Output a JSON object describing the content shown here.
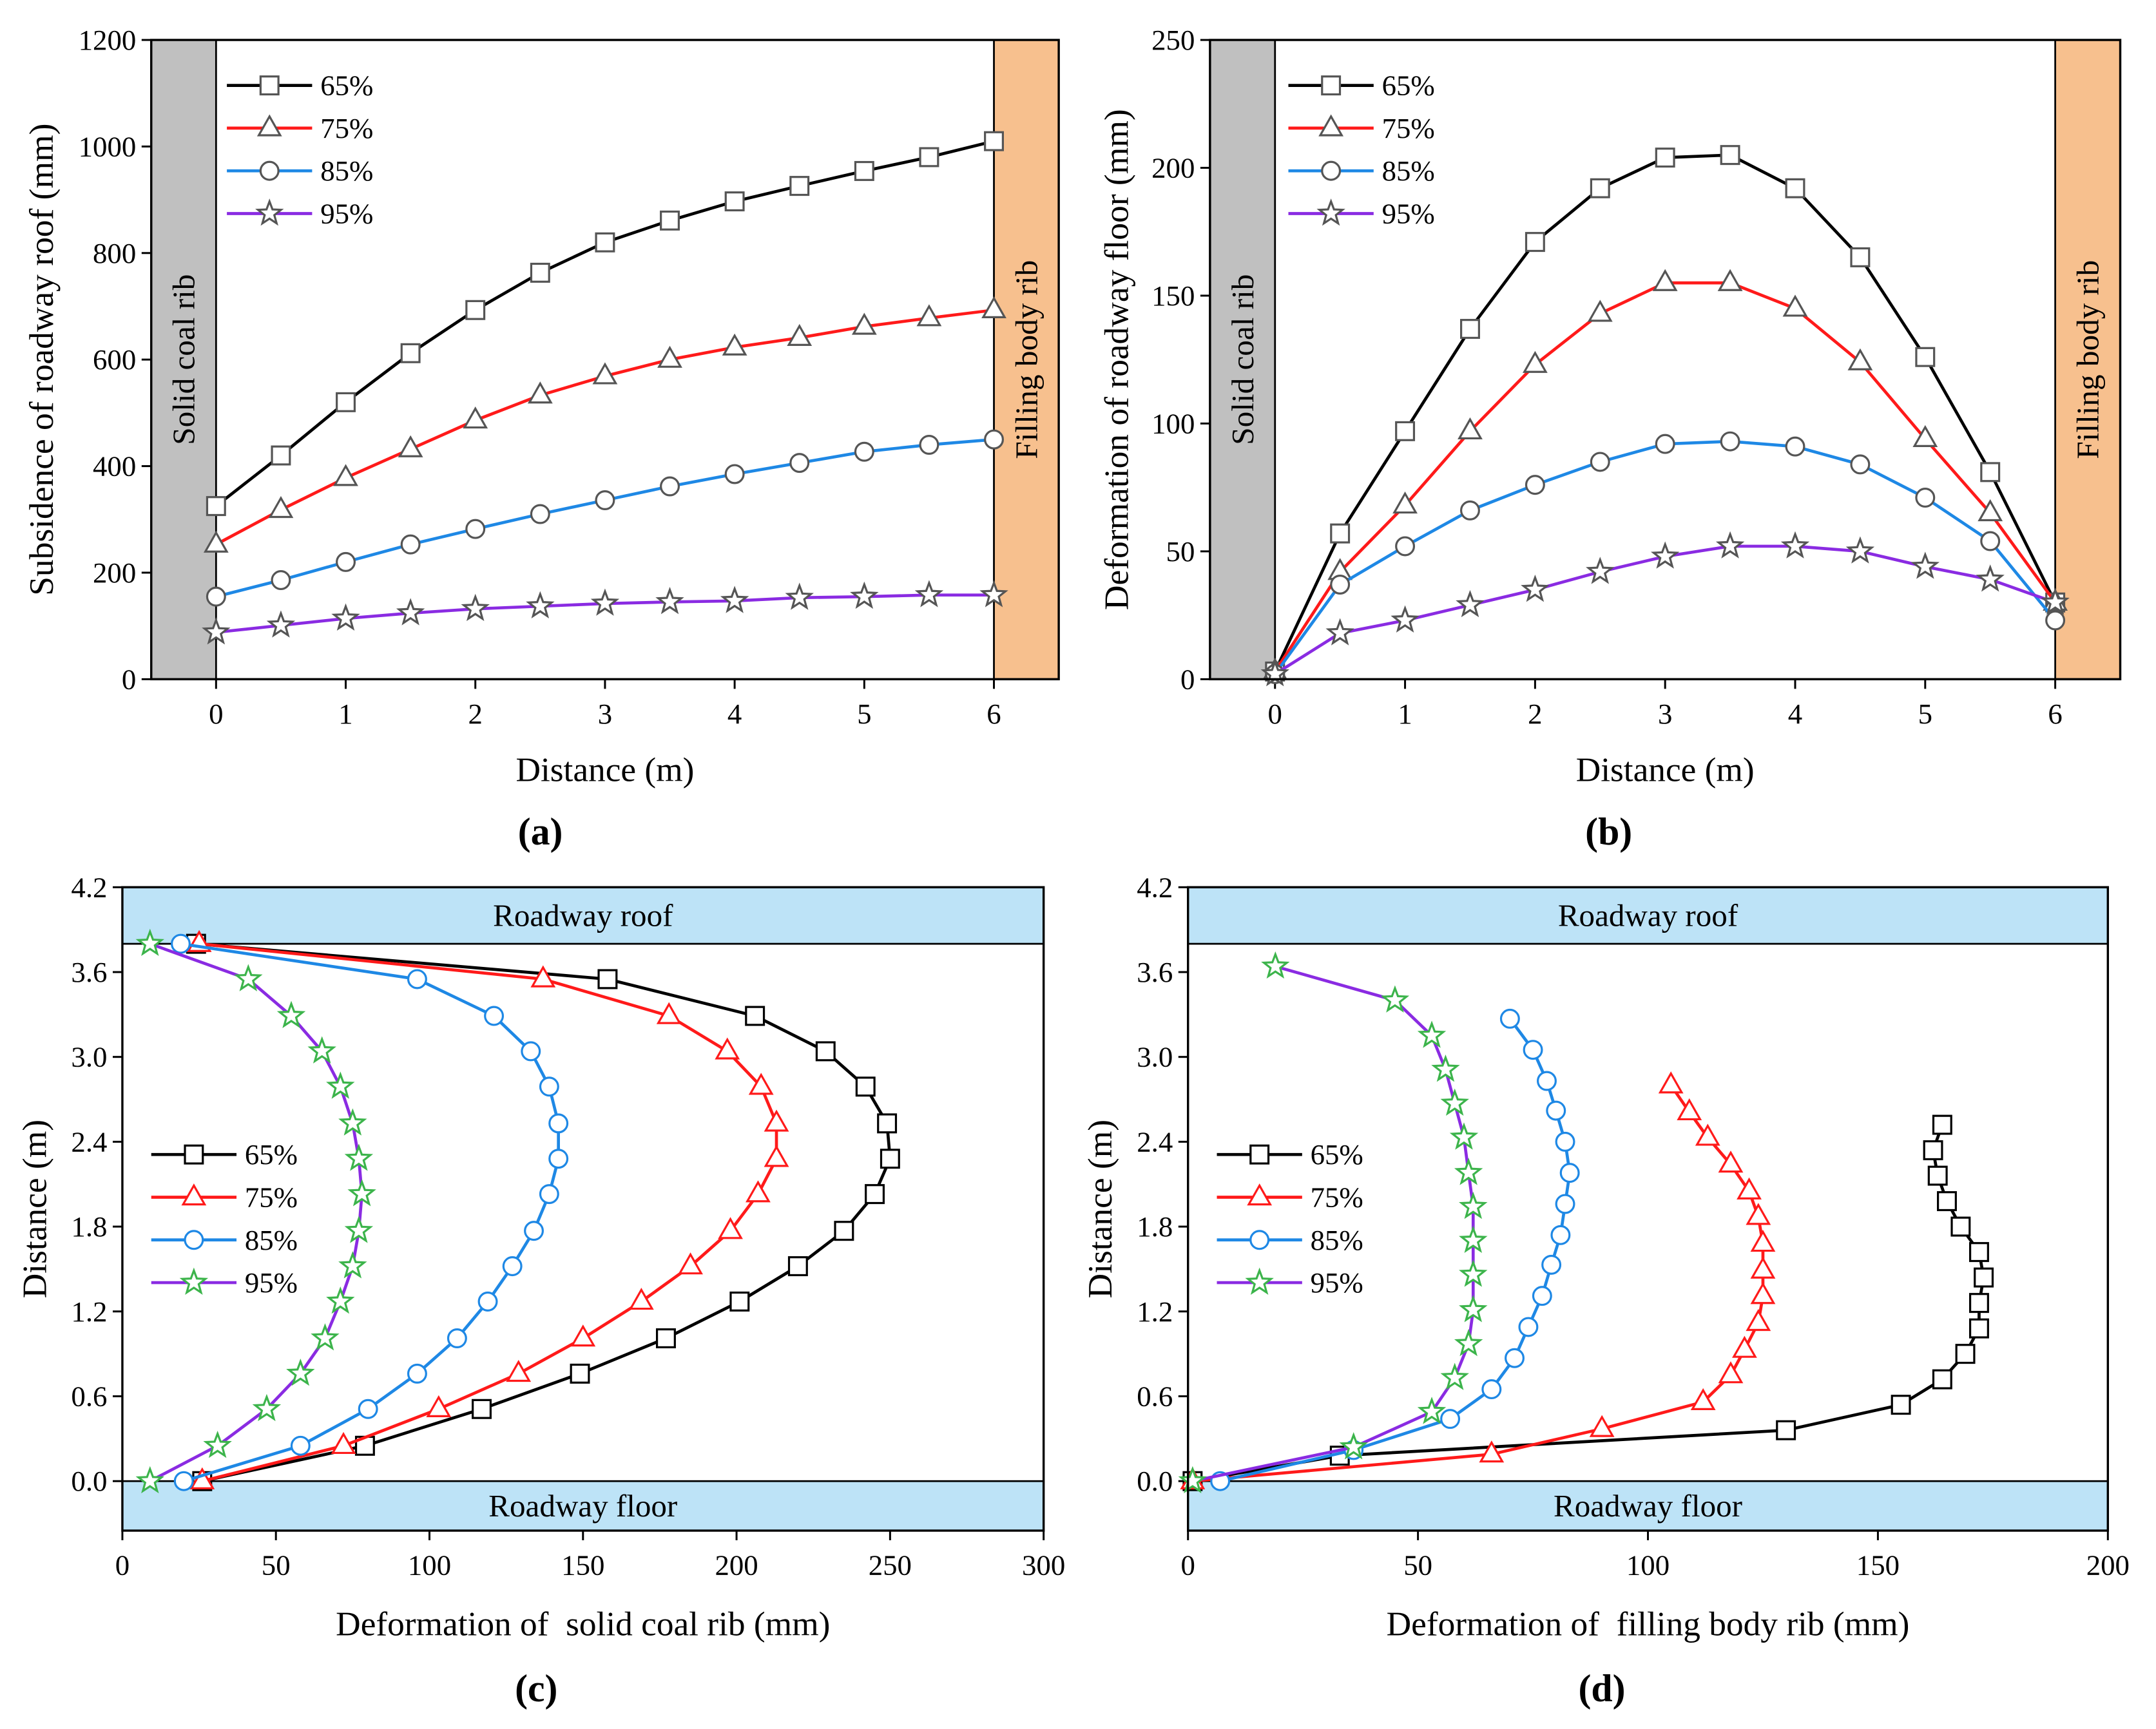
{
  "chart_data": [
    {
      "panel_label": "(a)",
      "type": "line",
      "xlabel": "Distance (m)",
      "ylabel": "Subsidence of roadway roof (mm)",
      "xlim": [
        -0.5,
        6.5
      ],
      "ylim": [
        0,
        1200
      ],
      "xticks": [
        0,
        1,
        2,
        3,
        4,
        5,
        6
      ],
      "xtick_labels": [
        "0",
        "1",
        "2",
        "3",
        "4",
        "5",
        "6"
      ],
      "yticks": [
        0,
        200,
        400,
        600,
        800,
        1000,
        1200
      ],
      "ytick_labels": [
        "0",
        "200",
        "400",
        "600",
        "800",
        "1000",
        "1200"
      ],
      "grid": false,
      "legend_position": "top-left",
      "regions": [
        {
          "label": "Solid coal rib",
          "axis": "x",
          "from": -0.5,
          "to": 0,
          "color": "#c0c0c0"
        },
        {
          "label": "Filling body rib",
          "axis": "x",
          "from": 6,
          "to": 6.5,
          "color": "#f7c08e"
        }
      ],
      "x": [
        0,
        0.5,
        1,
        1.5,
        2,
        2.5,
        3,
        3.5,
        4,
        4.5,
        5,
        5.5,
        6
      ],
      "series": [
        {
          "name": "65%",
          "marker": "square",
          "color": "#000000",
          "marker_color": "#555555",
          "values": [
            325,
            420,
            520,
            612,
            693,
            763,
            820,
            861,
            897,
            926,
            954,
            980,
            1010
          ]
        },
        {
          "name": "75%",
          "marker": "triangle",
          "color": "#ff1a1a",
          "marker_color": "#555555",
          "values": [
            253,
            318,
            378,
            432,
            486,
            533,
            569,
            600,
            623,
            641,
            662,
            678,
            693
          ]
        },
        {
          "name": "85%",
          "marker": "circle",
          "color": "#1e88e5",
          "marker_color": "#555555",
          "values": [
            155,
            186,
            220,
            253,
            282,
            310,
            336,
            362,
            385,
            406,
            427,
            440,
            450
          ]
        },
        {
          "name": "95%",
          "marker": "star",
          "color": "#8a2be2",
          "marker_color": "#555555",
          "values": [
            88,
            101,
            114,
            124,
            132,
            137,
            142,
            145,
            147,
            153,
            155,
            158,
            158
          ]
        }
      ]
    },
    {
      "panel_label": "(b)",
      "type": "line",
      "xlabel": "Distance (m)",
      "ylabel": "Deformation of roadway floor (mm)",
      "xlim": [
        -0.5,
        6.5
      ],
      "ylim": [
        0,
        250
      ],
      "xticks": [
        0,
        1,
        2,
        3,
        4,
        5,
        6
      ],
      "xtick_labels": [
        "0",
        "1",
        "2",
        "3",
        "4",
        "5",
        "6"
      ],
      "yticks": [
        0,
        50,
        100,
        150,
        200,
        250
      ],
      "ytick_labels": [
        "0",
        "50",
        "100",
        "150",
        "200",
        "250"
      ],
      "grid": false,
      "legend_position": "top-left",
      "regions": [
        {
          "label": "Solid coal rib",
          "axis": "x",
          "from": -0.5,
          "to": 0,
          "color": "#c0c0c0"
        },
        {
          "label": "Filling body rib",
          "axis": "x",
          "from": 6,
          "to": 6.5,
          "color": "#f7c08e"
        }
      ],
      "x": [
        0,
        0.5,
        1,
        1.5,
        2,
        2.5,
        3,
        3.5,
        4,
        4.5,
        5,
        5.5,
        6
      ],
      "series": [
        {
          "name": "65%",
          "marker": "square",
          "color": "#000000",
          "marker_color": "#555555",
          "values": [
            3,
            57,
            97,
            137,
            171,
            192,
            204,
            205,
            192,
            165,
            126,
            81,
            30
          ]
        },
        {
          "name": "75%",
          "marker": "triangle",
          "color": "#ff1a1a",
          "marker_color": "#555555",
          "values": [
            3,
            42,
            68,
            97,
            123,
            143,
            155,
            155,
            145,
            124,
            94,
            65,
            30
          ]
        },
        {
          "name": "85%",
          "marker": "circle",
          "color": "#1e88e5",
          "marker_color": "#555555",
          "values": [
            2,
            37,
            52,
            66,
            76,
            85,
            92,
            93,
            91,
            84,
            71,
            54,
            23
          ]
        },
        {
          "name": "95%",
          "marker": "star",
          "color": "#8a2be2",
          "marker_color": "#555555",
          "values": [
            2,
            18,
            23,
            29,
            35,
            42,
            48,
            52,
            52,
            50,
            44,
            39,
            30
          ]
        }
      ]
    },
    {
      "panel_label": "(c)",
      "type": "line",
      "xlabel": "Deformation of  solid coal rib (mm)",
      "ylabel": "Distance (m)",
      "xlim": [
        0,
        300
      ],
      "ylim": [
        -0.35,
        4.2
      ],
      "xticks": [
        0,
        50,
        100,
        150,
        200,
        250,
        300
      ],
      "xtick_labels": [
        "0",
        "50",
        "100",
        "150",
        "200",
        "250",
        "300"
      ],
      "yticks": [
        0,
        0.6,
        1.2,
        1.8,
        2.4,
        3.0,
        3.6,
        4.2
      ],
      "ytick_labels": [
        "0.0",
        "0.6",
        "1.2",
        "1.8",
        "2.4",
        "3.0",
        "3.6",
        "4.2"
      ],
      "grid": false,
      "legend_position": "middle-left",
      "regions": [
        {
          "label": "Roadway roof",
          "axis": "y",
          "from": 3.8,
          "to": 4.2,
          "color": "#bde3f7"
        },
        {
          "label": "Roadway floor",
          "axis": "y",
          "from": -0.35,
          "to": 0,
          "color": "#bde3f7"
        }
      ],
      "series": [
        {
          "name": "65%",
          "marker": "square",
          "color": "#000000",
          "marker_color": "#000000",
          "y": [
            0,
            0.25,
            0.51,
            0.76,
            1.01,
            1.27,
            1.52,
            1.77,
            2.03,
            2.28,
            2.53,
            2.79,
            3.04,
            3.29,
            3.55,
            3.8
          ],
          "x": [
            26,
            79,
            117,
            149,
            177,
            201,
            220,
            235,
            245,
            250,
            249,
            242,
            229,
            206,
            158,
            24
          ]
        },
        {
          "name": "75%",
          "marker": "triangle",
          "color": "#ff1a1a",
          "marker_color": "#ff1a1a",
          "y": [
            0,
            0.25,
            0.51,
            0.76,
            1.01,
            1.27,
            1.52,
            1.77,
            2.03,
            2.28,
            2.53,
            2.79,
            3.04,
            3.29,
            3.55,
            3.8
          ],
          "x": [
            26,
            72,
            103,
            129,
            150,
            169,
            185,
            198,
            207,
            213,
            213,
            208,
            197,
            178,
            137,
            25
          ]
        },
        {
          "name": "85%",
          "marker": "circle",
          "color": "#1e88e5",
          "marker_color": "#1e88e5",
          "y": [
            0,
            0.25,
            0.51,
            0.76,
            1.01,
            1.27,
            1.52,
            1.77,
            2.03,
            2.28,
            2.53,
            2.79,
            3.04,
            3.29,
            3.55,
            3.8
          ],
          "x": [
            20,
            58,
            80,
            96,
            109,
            119,
            127,
            134,
            139,
            142,
            142,
            139,
            133,
            121,
            96,
            19
          ]
        },
        {
          "name": "95%",
          "marker": "star",
          "color": "#8a2be2",
          "marker_color": "#3cb44b",
          "y": [
            0,
            0.25,
            0.51,
            0.76,
            1.01,
            1.27,
            1.52,
            1.77,
            2.03,
            2.28,
            2.53,
            2.79,
            3.04,
            3.29,
            3.55,
            3.8
          ],
          "x": [
            9,
            31,
            47,
            58,
            66,
            71,
            75,
            77,
            78,
            77,
            75,
            71,
            65,
            55,
            41,
            9
          ]
        }
      ]
    },
    {
      "panel_label": "(d)",
      "type": "line",
      "xlabel": "Deformation of  filling body rib (mm)",
      "ylabel": "Distance (m)",
      "xlim": [
        0,
        200
      ],
      "ylim": [
        -0.35,
        4.2
      ],
      "xticks": [
        0,
        50,
        100,
        150,
        200
      ],
      "xtick_labels": [
        "0",
        "50",
        "100",
        "150",
        "200"
      ],
      "yticks": [
        0,
        0.6,
        1.2,
        1.8,
        2.4,
        3.0,
        3.6,
        4.2
      ],
      "ytick_labels": [
        "0.0",
        "0.6",
        "1.2",
        "1.8",
        "2.4",
        "3.0",
        "3.6",
        "4.2"
      ],
      "grid": false,
      "legend_position": "middle-left",
      "regions": [
        {
          "label": "Roadway roof",
          "axis": "y",
          "from": 3.8,
          "to": 4.2,
          "color": "#bde3f7"
        },
        {
          "label": "Roadway floor",
          "axis": "y",
          "from": -0.35,
          "to": 0,
          "color": "#bde3f7"
        }
      ],
      "series": [
        {
          "name": "65%",
          "marker": "square",
          "color": "#000000",
          "marker_color": "#000000",
          "y": [
            0,
            0.18,
            0.36,
            0.54,
            0.72,
            0.9,
            1.08,
            1.26,
            1.44,
            1.62,
            1.8,
            1.98,
            2.16,
            2.34,
            2.52
          ],
          "x": [
            1,
            33,
            130,
            155,
            164,
            169,
            172,
            172,
            173,
            172,
            168,
            165,
            163,
            162,
            164
          ]
        },
        {
          "name": "75%",
          "marker": "triangle",
          "color": "#ff1a1a",
          "marker_color": "#ff1a1a",
          "y": [
            0,
            0.19,
            0.37,
            0.56,
            0.75,
            0.93,
            1.12,
            1.31,
            1.49,
            1.68,
            1.87,
            2.05,
            2.24,
            2.43,
            2.61,
            2.8
          ],
          "x": [
            1,
            66,
            90,
            112,
            118,
            121,
            124,
            125,
            125,
            125,
            124,
            122,
            118,
            113,
            109,
            105
          ]
        },
        {
          "name": "85%",
          "marker": "circle",
          "color": "#1e88e5",
          "marker_color": "#1e88e5",
          "y": [
            0,
            0.22,
            0.44,
            0.65,
            0.87,
            1.09,
            1.31,
            1.53,
            1.74,
            1.96,
            2.18,
            2.4,
            2.62,
            2.83,
            3.05,
            3.27
          ],
          "x": [
            7,
            36,
            57,
            66,
            71,
            74,
            77,
            79,
            81,
            82,
            83,
            82,
            80,
            78,
            75,
            70
          ]
        },
        {
          "name": "95%",
          "marker": "star",
          "color": "#8a2be2",
          "marker_color": "#3cb44b",
          "y": [
            0,
            0.24,
            0.49,
            0.73,
            0.97,
            1.21,
            1.46,
            1.7,
            1.94,
            2.18,
            2.43,
            2.67,
            2.91,
            3.15,
            3.4,
            3.64
          ],
          "x": [
            1,
            36,
            53,
            58,
            61,
            62,
            62,
            62,
            62,
            61,
            60,
            58,
            56,
            53,
            45,
            19
          ]
        }
      ]
    }
  ]
}
